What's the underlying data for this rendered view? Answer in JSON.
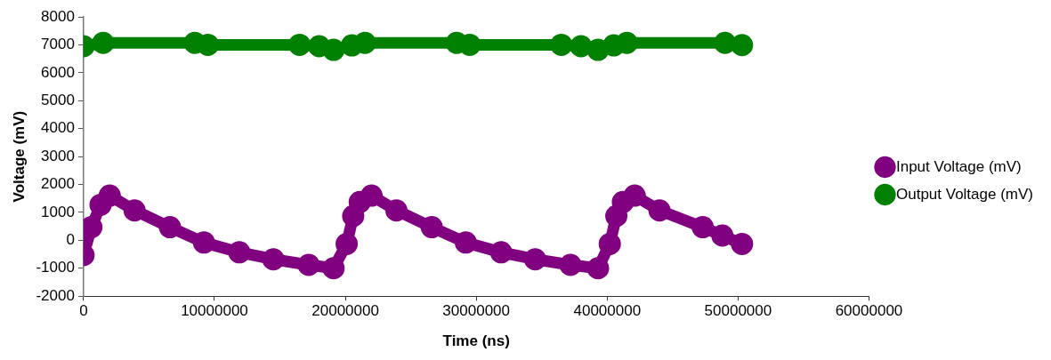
{
  "chart_data": {
    "type": "line",
    "xlabel": "Time (ns)",
    "ylabel": "Voltage (mV)",
    "xlim": [
      0,
      60000000
    ],
    "xticks": [
      0,
      10000000,
      20000000,
      30000000,
      40000000,
      50000000,
      60000000
    ],
    "ylim": [
      -2000,
      8000
    ],
    "yticks": [
      -2000,
      -1000,
      0,
      1000,
      2000,
      3000,
      4000,
      5000,
      6000,
      7000,
      8000
    ],
    "grid": false,
    "legend": "right",
    "marker": "circle",
    "line_style": "solid",
    "series": [
      {
        "name": "Input Voltage (mV)",
        "color": "#800080",
        "x": [
          0,
          600000,
          1300000,
          2000000,
          3900000,
          6600000,
          9200000,
          11900000,
          14500000,
          17200000,
          19100000,
          20100000,
          20600000,
          21100000,
          22000000,
          23900000,
          26600000,
          29200000,
          31900000,
          34500000,
          37200000,
          39300000,
          40200000,
          40700000,
          41200000,
          42100000,
          44000000,
          47300000,
          48800000,
          50300000
        ],
        "values": [
          -530,
          470,
          1270,
          1600,
          1070,
          470,
          -80,
          -430,
          -680,
          -880,
          -1000,
          -130,
          870,
          1370,
          1600,
          1070,
          470,
          -80,
          -430,
          -680,
          -880,
          -1000,
          -130,
          870,
          1370,
          1600,
          1070,
          470,
          170,
          -130
        ]
      },
      {
        "name": "Output Voltage (mV)",
        "color": "#008000",
        "x": [
          0,
          1500000,
          8500000,
          9500000,
          16500000,
          18000000,
          19100000,
          20500000,
          21500000,
          28500000,
          29500000,
          36500000,
          38000000,
          39300000,
          40500000,
          41500000,
          49000000,
          50300000
        ],
        "values": [
          6950,
          7070,
          7070,
          7000,
          7000,
          6950,
          6820,
          6980,
          7070,
          7070,
          7000,
          7000,
          6950,
          6820,
          6980,
          7070,
          7070,
          6990
        ]
      }
    ]
  }
}
